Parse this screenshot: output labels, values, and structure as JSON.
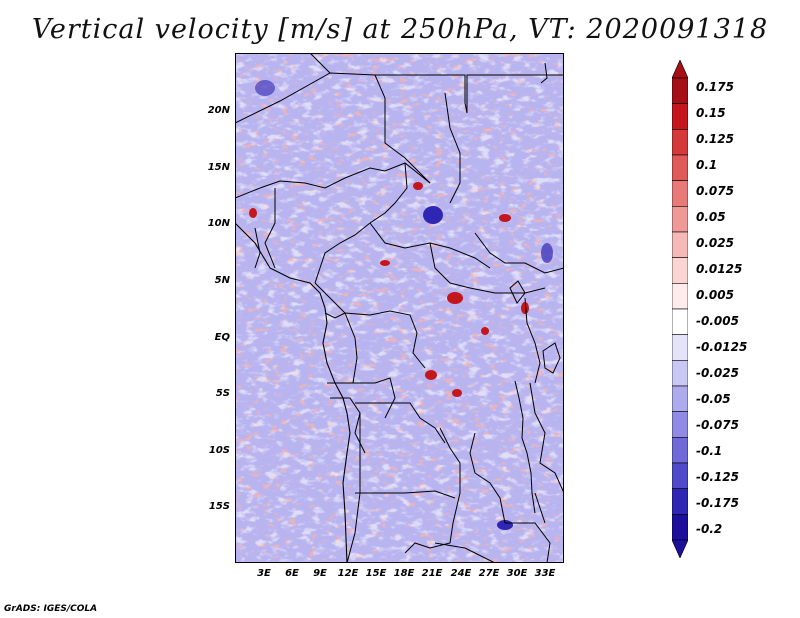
{
  "title": "Vertical velocity [m/s] at 250hPa, VT: 2020091318",
  "map": {
    "lat_range": [
      -19,
      25
    ],
    "lon_range": [
      0,
      35
    ],
    "lat_ticks": [
      "20N",
      "15N",
      "10N",
      "5N",
      "EQ",
      "5S",
      "10S",
      "15S"
    ],
    "lat_values": [
      20,
      15,
      10,
      5,
      0,
      -5,
      -10,
      -15
    ],
    "lon_ticks": [
      "3E",
      "6E",
      "9E",
      "12E",
      "15E",
      "18E",
      "21E",
      "24E",
      "27E",
      "30E",
      "33E"
    ],
    "lon_values": [
      3,
      6,
      9,
      12,
      15,
      18,
      21,
      24,
      27,
      30,
      33
    ]
  },
  "colorbar": {
    "labels": [
      "0.175",
      "0.15",
      "0.125",
      "0.1",
      "0.075",
      "0.05",
      "0.025",
      "0.0125",
      "0.005",
      "-0.005",
      "-0.0125",
      "-0.025",
      "-0.05",
      "-0.075",
      "-0.1",
      "-0.125",
      "-0.175",
      "-0.2"
    ],
    "colors": [
      "#a50f15",
      "#c4161c",
      "#d6393a",
      "#e05a5a",
      "#e87a78",
      "#f09a98",
      "#f5b9b7",
      "#fad5d4",
      "#fdeceb",
      "#ffffff",
      "#e4e3fa",
      "#c9c7f4",
      "#aeaaee",
      "#918be6",
      "#706ad9",
      "#4f4ac9",
      "#3026b4",
      "#1c0f9c"
    ]
  },
  "credit": "GrADS: IGES/COLA"
}
